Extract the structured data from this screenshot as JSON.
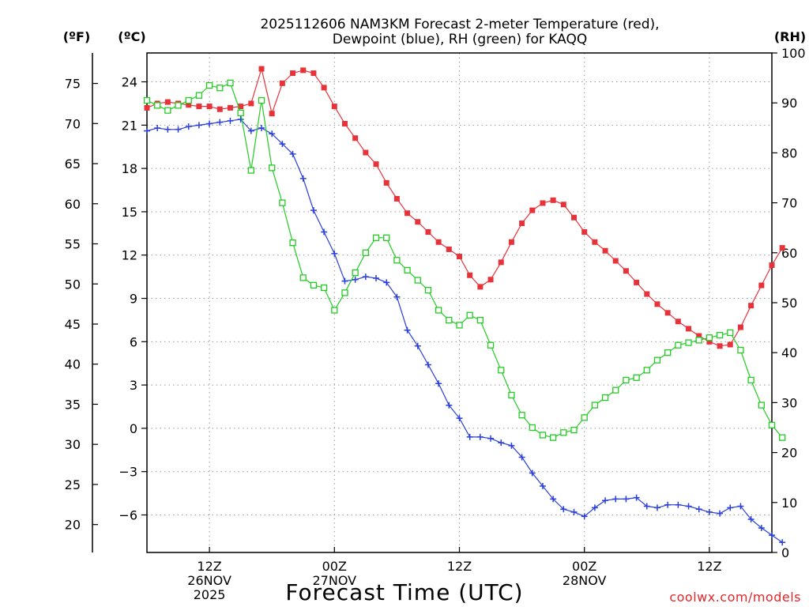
{
  "chart_data": {
    "type": "line",
    "title": "2025112606 NAM3KM Forecast 2-meter Temperature (red),",
    "subtitle": "Dewpoint (blue), RH (green) for KAQQ",
    "xlabel": "Forecast Time (UTC)",
    "credit": "coolwx.com/models",
    "units": {
      "fahrenheit": "(ºF)",
      "celsius": "(ºC)",
      "rh": "(RH)"
    },
    "x_hours_start": 6,
    "x_hours_end": 66,
    "xlim": [
      6,
      66
    ],
    "ylim_c": [
      -8.6,
      26.0
    ],
    "ylim_rh": [
      0,
      100
    ],
    "celsius_ticks": [
      "24",
      "21",
      "18",
      "15",
      "12",
      "9",
      "6",
      "3",
      "0",
      "−3",
      "−6"
    ],
    "celsius_tick_values": [
      24,
      21,
      18,
      15,
      12,
      9,
      6,
      3,
      0,
      -3,
      -6
    ],
    "fahrenheit_ticks": [
      "75",
      "70",
      "65",
      "60",
      "55",
      "50",
      "45",
      "40",
      "35",
      "30",
      "25",
      "20"
    ],
    "fahrenheit_tick_values": [
      75,
      70,
      65,
      60,
      55,
      50,
      45,
      40,
      35,
      30,
      25,
      20
    ],
    "rh_ticks": [
      "100",
      "90",
      "80",
      "70",
      "60",
      "50",
      "40",
      "30",
      "20",
      "10",
      "0"
    ],
    "rh_tick_values": [
      100,
      90,
      80,
      70,
      60,
      50,
      40,
      30,
      20,
      10,
      0
    ],
    "x_ticks": [
      {
        "hour": 12,
        "lines": [
          "12Z",
          "26NOV",
          "2025"
        ]
      },
      {
        "hour": 24,
        "lines": [
          "00Z",
          "27NOV"
        ]
      },
      {
        "hour": 36,
        "lines": [
          "12Z"
        ]
      },
      {
        "hour": 48,
        "lines": [
          "00Z",
          "28NOV"
        ]
      },
      {
        "hour": 60,
        "lines": [
          "12Z"
        ]
      }
    ],
    "colors": {
      "temperature": "#e8323a",
      "dewpoint": "#2a3fdc",
      "rh": "#22cc22",
      "grid": "#999999"
    },
    "series": [
      {
        "name": "Temperature",
        "unit": "C",
        "marker": "filled-square",
        "values": [
          22.2,
          22.5,
          22.6,
          22.5,
          22.4,
          22.3,
          22.3,
          22.1,
          22.2,
          22.3,
          22.5,
          24.9,
          21.8,
          23.9,
          24.6,
          24.8,
          24.6,
          23.6,
          22.3,
          21.1,
          20.1,
          19.1,
          18.3,
          17.0,
          15.9,
          14.9,
          14.3,
          13.6,
          12.9,
          12.4,
          11.9,
          10.6,
          9.8,
          10.3,
          11.5,
          12.9,
          14.2,
          15.1,
          15.6,
          15.8,
          15.5,
          14.6,
          13.6,
          12.9,
          12.3,
          11.6,
          10.9,
          10.1,
          9.3,
          8.6,
          8.0,
          7.4,
          6.9,
          6.4,
          6.0,
          5.7,
          5.8,
          7.0,
          8.5,
          9.9,
          11.3,
          12.5
        ]
      },
      {
        "name": "Dewpoint",
        "unit": "C",
        "marker": "plus",
        "values": [
          20.6,
          20.8,
          20.7,
          20.7,
          20.9,
          21.0,
          21.1,
          21.2,
          21.3,
          21.4,
          20.6,
          20.8,
          20.4,
          19.7,
          19.0,
          17.3,
          15.1,
          13.6,
          12.1,
          10.2,
          10.3,
          10.5,
          10.4,
          10.1,
          9.1,
          6.8,
          5.7,
          4.4,
          3.1,
          1.6,
          0.7,
          -0.6,
          -0.6,
          -0.7,
          -1.0,
          -1.2,
          -2.0,
          -3.1,
          -4.0,
          -4.9,
          -5.6,
          -5.8,
          -6.1,
          -5.5,
          -5.0,
          -4.9,
          -4.9,
          -4.8,
          -5.4,
          -5.5,
          -5.3,
          -5.3,
          -5.4,
          -5.6,
          -5.8,
          -5.9,
          -5.5,
          -5.4,
          -6.3,
          -6.9,
          -7.4,
          -7.9
        ]
      },
      {
        "name": "RH",
        "unit": "%",
        "marker": "open-square",
        "values": [
          90.5,
          89.5,
          88.5,
          89.5,
          90.5,
          91.5,
          93.5,
          93.0,
          94.0,
          88.0,
          76.5,
          90.5,
          77.0,
          70.0,
          62.0,
          55.0,
          53.5,
          53.0,
          48.5,
          52.0,
          56.0,
          60.0,
          63.0,
          63.0,
          58.5,
          56.5,
          54.5,
          52.5,
          48.5,
          46.5,
          45.5,
          47.5,
          46.5,
          41.5,
          36.5,
          31.5,
          27.5,
          25.0,
          23.5,
          23.0,
          24.0,
          24.5,
          27.0,
          29.5,
          31.0,
          32.5,
          34.5,
          35.0,
          36.5,
          38.5,
          40.0,
          41.5,
          42.0,
          42.5,
          43.0,
          43.5,
          44.0,
          40.5,
          34.5,
          29.5,
          25.5,
          23.0
        ]
      }
    ]
  }
}
